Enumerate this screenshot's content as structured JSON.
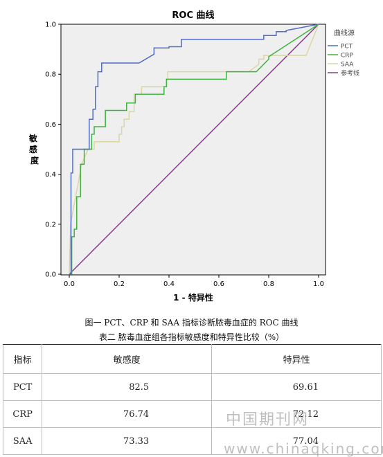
{
  "chart_data": {
    "type": "line",
    "title": "ROC 曲线",
    "xlabel": "1 - 特异性",
    "ylabel": "敏感度",
    "xlim": [
      0,
      1
    ],
    "ylim": [
      0,
      1
    ],
    "xticks": [
      "0.0",
      "0.2",
      "0.4",
      "0.6",
      "0.8",
      "1.0"
    ],
    "yticks": [
      "0.0",
      "0.2",
      "0.4",
      "0.6",
      "0.8",
      "1.0"
    ],
    "grid": false,
    "legend_title": "曲线源",
    "legend_position": "right",
    "series": [
      {
        "name": "PCT",
        "color": "#4f6cc0",
        "x": [
          0,
          0.007,
          0.007,
          0.014,
          0.014,
          0.08,
          0.08,
          0.095,
          0.095,
          0.105,
          0.105,
          0.115,
          0.115,
          0.13,
          0.13,
          0.28,
          0.34,
          0.34,
          0.4,
          0.4,
          0.45,
          0.45,
          0.78,
          0.78,
          0.83,
          0.83,
          0.87,
          0.87,
          1
        ],
        "y": [
          0,
          0,
          0.405,
          0.405,
          0.5,
          0.5,
          0.62,
          0.62,
          0.66,
          0.66,
          0.75,
          0.75,
          0.81,
          0.81,
          0.845,
          0.845,
          0.88,
          0.905,
          0.905,
          0.91,
          0.91,
          0.94,
          0.94,
          0.955,
          0.955,
          0.97,
          0.97,
          0.975,
          1
        ]
      },
      {
        "name": "CRP",
        "color": "#3cb33c",
        "x": [
          0,
          0.01,
          0.01,
          0.02,
          0.02,
          0.03,
          0.03,
          0.045,
          0.045,
          0.06,
          0.06,
          0.065,
          0.065,
          0.09,
          0.09,
          0.1,
          0.1,
          0.145,
          0.145,
          0.23,
          0.23,
          0.265,
          0.265,
          0.38,
          0.38,
          0.39,
          0.39,
          0.44,
          0.44,
          0.63,
          0.63,
          0.75,
          0.8,
          0.8,
          1
        ],
        "y": [
          0,
          0,
          0.15,
          0.15,
          0.18,
          0.18,
          0.31,
          0.31,
          0.44,
          0.44,
          0.5,
          0.5,
          0.5,
          0.5,
          0.56,
          0.56,
          0.59,
          0.59,
          0.655,
          0.655,
          0.685,
          0.685,
          0.72,
          0.72,
          0.75,
          0.75,
          0.78,
          0.78,
          0.78,
          0.78,
          0.81,
          0.81,
          0.86,
          0.87,
          1
        ]
      },
      {
        "name": "SAA",
        "color": "#dad6a4",
        "x": [
          0,
          0.005,
          0.05,
          0.075,
          0.1,
          0.1,
          0.2,
          0.2,
          0.21,
          0.21,
          0.22,
          0.22,
          0.24,
          0.24,
          0.26,
          0.26,
          0.29,
          0.29,
          0.39,
          0.39,
          0.395,
          0.395,
          0.4,
          0.4,
          0.72,
          0.76,
          0.76,
          0.78,
          0.78,
          0.95,
          1
        ],
        "y": [
          0,
          0.2,
          0.44,
          0.5,
          0.5,
          0.53,
          0.53,
          0.56,
          0.56,
          0.59,
          0.59,
          0.62,
          0.62,
          0.65,
          0.65,
          0.72,
          0.72,
          0.75,
          0.75,
          0.78,
          0.78,
          0.81,
          0.81,
          0.81,
          0.81,
          0.84,
          0.86,
          0.86,
          0.875,
          0.875,
          1
        ]
      },
      {
        "name": "参考线",
        "color": "#8b3a8b",
        "x": [
          0,
          1
        ],
        "y": [
          0,
          1
        ]
      }
    ]
  },
  "captions": {
    "figure": "图一 PCT、CRP 和 SAA 指标诊断脓毒血症的 ROC 曲线",
    "table": "表二 脓毒血症组各指标敏感度和特异性比较（%）"
  },
  "table": {
    "headers": [
      "指标",
      "敏感度",
      "特异性"
    ],
    "rows": [
      [
        "PCT",
        "82.5",
        "69.61"
      ],
      [
        "CRP",
        "76.74",
        "72.12"
      ],
      [
        "SAA",
        "73.33",
        "77.04"
      ]
    ]
  },
  "watermark": {
    "cn": "中国期刊网",
    "url": "www.chinaqking.com"
  }
}
